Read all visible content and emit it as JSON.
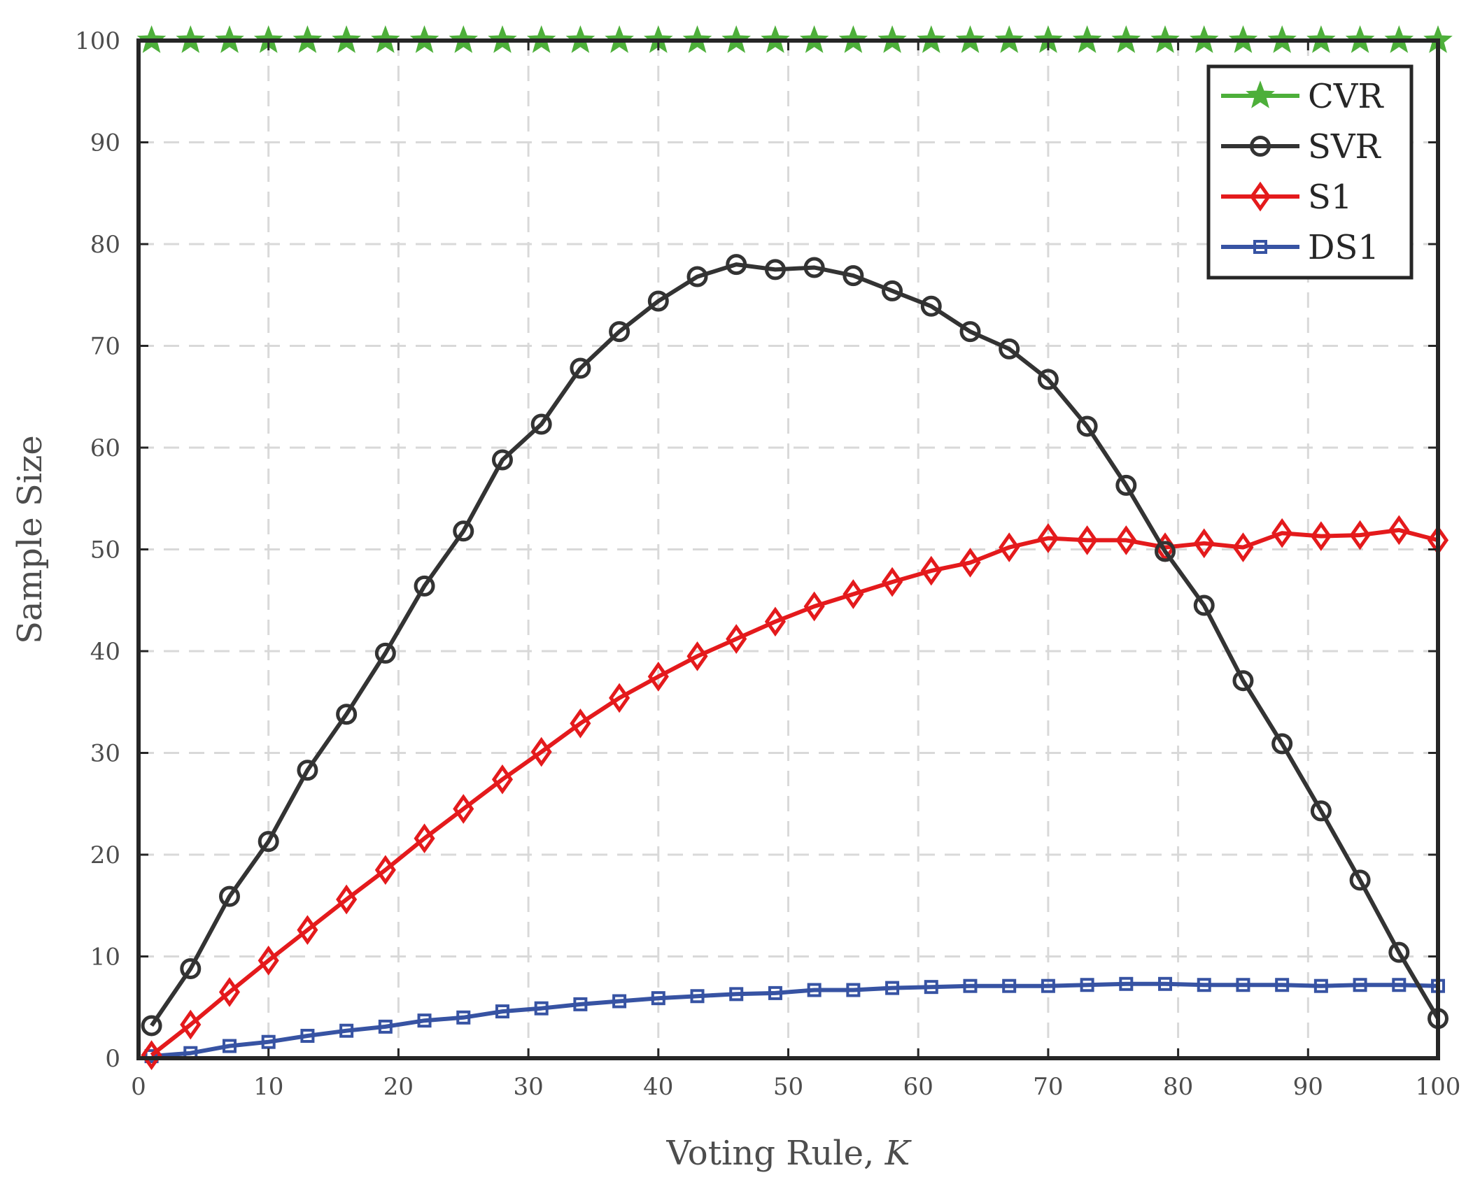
{
  "chart_data": {
    "type": "line",
    "xlabel": "Voting Rule, ",
    "xlabel_var": "K",
    "ylabel": "Sample Size",
    "xlim": [
      0,
      100
    ],
    "ylim": [
      0,
      100
    ],
    "xticks": [
      0,
      10,
      20,
      30,
      40,
      50,
      60,
      70,
      80,
      90,
      100
    ],
    "yticks": [
      0,
      10,
      20,
      30,
      40,
      50,
      60,
      70,
      80,
      90,
      100
    ],
    "grid": true,
    "legend_position": "top-right",
    "series": [
      {
        "name": "CVR",
        "color": "#4daf3a",
        "marker": "star",
        "x": [
          1,
          4,
          7,
          10,
          13,
          16,
          19,
          22,
          25,
          28,
          31,
          34,
          37,
          40,
          43,
          46,
          49,
          52,
          55,
          58,
          61,
          64,
          67,
          70,
          73,
          76,
          79,
          82,
          85,
          88,
          91,
          94,
          97,
          100
        ],
        "values": [
          100,
          100,
          100,
          100,
          100,
          100,
          100,
          100,
          100,
          100,
          100,
          100,
          100,
          100,
          100,
          100,
          100,
          100,
          100,
          100,
          100,
          100,
          100,
          100,
          100,
          100,
          100,
          100,
          100,
          100,
          100,
          100,
          100,
          100
        ]
      },
      {
        "name": "SVR",
        "color": "#333333",
        "marker": "circle",
        "x": [
          1,
          4,
          7,
          10,
          13,
          16,
          19,
          22,
          25,
          28,
          31,
          34,
          37,
          40,
          43,
          46,
          49,
          52,
          55,
          58,
          61,
          64,
          67,
          70,
          73,
          76,
          79,
          82,
          85,
          88,
          91,
          94,
          97,
          100
        ],
        "values": [
          3.2,
          8.8,
          15.9,
          21.3,
          28.3,
          33.8,
          39.8,
          46.4,
          51.8,
          58.8,
          62.3,
          67.8,
          71.4,
          74.4,
          76.8,
          78.0,
          77.5,
          77.7,
          76.9,
          75.4,
          73.9,
          71.4,
          69.7,
          66.7,
          62.1,
          56.3,
          49.8,
          44.5,
          37.1,
          30.9,
          24.3,
          17.5,
          10.4,
          3.9
        ]
      },
      {
        "name": "S1",
        "color": "#e41a1c",
        "marker": "diamond",
        "x": [
          1,
          4,
          7,
          10,
          13,
          16,
          19,
          22,
          25,
          28,
          31,
          34,
          37,
          40,
          43,
          46,
          49,
          52,
          55,
          58,
          61,
          64,
          67,
          70,
          73,
          76,
          79,
          82,
          85,
          88,
          91,
          94,
          97,
          100
        ],
        "values": [
          0.3,
          3.3,
          6.5,
          9.6,
          12.6,
          15.6,
          18.5,
          21.6,
          24.5,
          27.4,
          30.1,
          32.9,
          35.4,
          37.5,
          39.5,
          41.2,
          42.9,
          44.4,
          45.6,
          46.8,
          47.9,
          48.7,
          50.2,
          51.1,
          50.9,
          50.9,
          50.2,
          50.6,
          50.2,
          51.6,
          51.3,
          51.4,
          51.9,
          50.9
        ]
      },
      {
        "name": "DS1",
        "color": "#3753a3",
        "marker": "square",
        "x": [
          1,
          4,
          7,
          10,
          13,
          16,
          19,
          22,
          25,
          28,
          31,
          34,
          37,
          40,
          43,
          46,
          49,
          52,
          55,
          58,
          61,
          64,
          67,
          70,
          73,
          76,
          79,
          82,
          85,
          88,
          91,
          94,
          97,
          100
        ],
        "values": [
          0.2,
          0.5,
          1.2,
          1.6,
          2.2,
          2.7,
          3.1,
          3.7,
          4.0,
          4.6,
          4.9,
          5.3,
          5.6,
          5.9,
          6.1,
          6.3,
          6.4,
          6.7,
          6.7,
          6.9,
          7.0,
          7.1,
          7.1,
          7.1,
          7.2,
          7.3,
          7.3,
          7.2,
          7.2,
          7.2,
          7.1,
          7.2,
          7.2,
          7.1
        ]
      }
    ]
  }
}
